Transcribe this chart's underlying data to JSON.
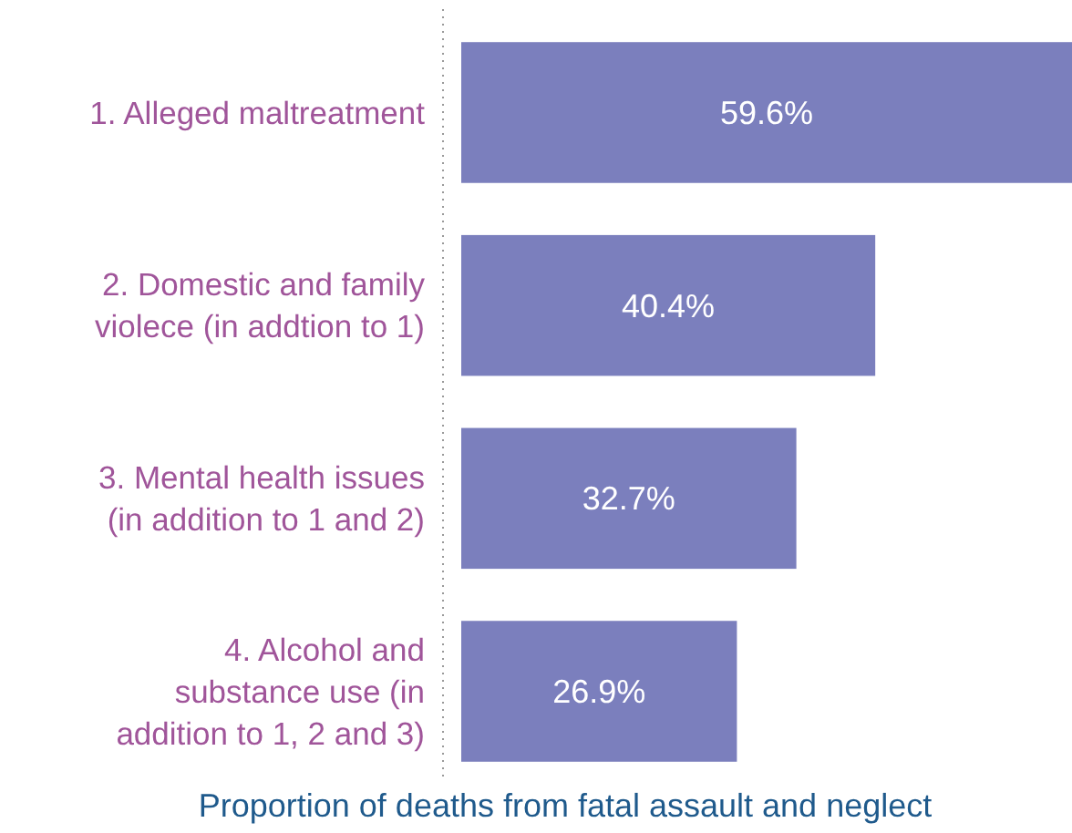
{
  "chart_data": {
    "type": "bar",
    "orientation": "horizontal",
    "xlabel": "Proportion of deaths from fatal assault and neglect",
    "categories": [
      "1. Alleged maltreatment",
      "2. Domestic and family violece (in addtion to 1)",
      "3. Mental health issues (in addition to 1 and 2)",
      "4. Alcohol and substance use (in addition to 1, 2 and 3)"
    ],
    "values": [
      59.6,
      40.4,
      32.7,
      26.9
    ],
    "value_labels": [
      "59.6%",
      "40.4%",
      "32.7%",
      "26.9%"
    ],
    "color": "#7b7fbd"
  }
}
